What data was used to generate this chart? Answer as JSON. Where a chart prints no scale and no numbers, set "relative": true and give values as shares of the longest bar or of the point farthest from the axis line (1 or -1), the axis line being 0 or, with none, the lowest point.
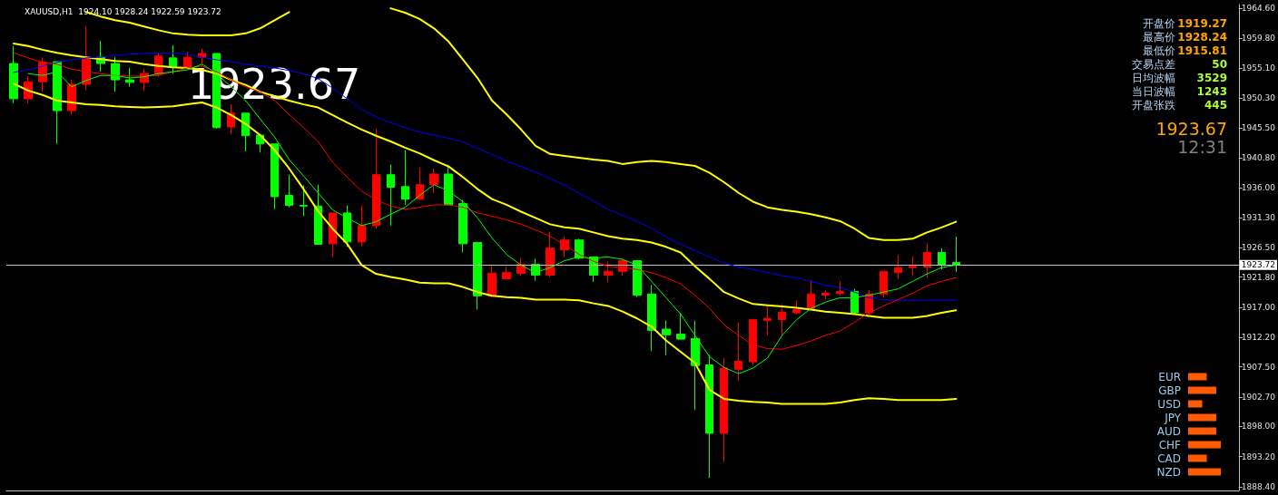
{
  "chart_data": [
    {
      "type": "candlestick",
      "title": "XAUUSD,H1  1924.10 1928.24 1922.59 1923.72",
      "categories": [
        null,
        null,
        null,
        null,
        null,
        null,
        null,
        null,
        null,
        null,
        null,
        null,
        null,
        null,
        null,
        null,
        null,
        null,
        null,
        null,
        null,
        null,
        null,
        null,
        null,
        null,
        null,
        null,
        null,
        null,
        null,
        null,
        null,
        null,
        null,
        null,
        null,
        null,
        null,
        null,
        null,
        null,
        null,
        null,
        null,
        null,
        null,
        null,
        null,
        null,
        null,
        null,
        null,
        null,
        null,
        null,
        null,
        null,
        null,
        null,
        null,
        null,
        null,
        null,
        null,
        null
      ],
      "ohlc": [
        [
          1955.8,
          1958.6,
          1949.5,
          1950.2
        ],
        [
          1950.2,
          1953.8,
          1949.5,
          1952.9
        ],
        [
          1952.9,
          1956.8,
          1951.3,
          1956.0
        ],
        [
          1956.1,
          1956.1,
          1943.0,
          1948.3
        ],
        [
          1948.3,
          1953.2,
          1947.7,
          1952.5
        ],
        [
          1952.5,
          1961.7,
          1951.6,
          1956.5
        ],
        [
          1956.8,
          1959.4,
          1954.5,
          1955.8
        ],
        [
          1955.8,
          1956.8,
          1951.3,
          1953.2
        ],
        [
          1953.2,
          1955.1,
          1952.1,
          1952.8
        ],
        [
          1952.8,
          1955.0,
          1951.5,
          1954.2
        ],
        [
          1954.1,
          1957.5,
          1953.7,
          1957.0
        ],
        [
          1956.7,
          1958.7,
          1954.2,
          1955.2
        ],
        [
          1955.2,
          1957.7,
          1955.0,
          1956.8
        ],
        [
          1956.8,
          1958.1,
          1955.4,
          1957.4
        ],
        [
          1957.4,
          1957.5,
          1945.4,
          1945.6
        ],
        [
          1945.7,
          1949.3,
          1944.6,
          1947.9
        ],
        [
          1947.9,
          1947.9,
          1941.8,
          1944.3
        ],
        [
          1944.4,
          1944.6,
          1941.6,
          1943.0
        ],
        [
          1943.0,
          1943.0,
          1932.6,
          1934.6
        ],
        [
          1934.8,
          1938.1,
          1932.9,
          1933.2
        ],
        [
          1933.2,
          1936.4,
          1931.5,
          1933.1
        ],
        [
          1933.1,
          1936.5,
          1926.9,
          1927.0
        ],
        [
          1927.1,
          1932.0,
          1925.0,
          1932.0
        ],
        [
          1932.0,
          1933.2,
          1926.6,
          1927.4
        ],
        [
          1927.4,
          1933.2,
          1926.7,
          1930.0
        ],
        [
          1930.0,
          1945.4,
          1929.5,
          1938.1
        ],
        [
          1938.1,
          1939.7,
          1930.0,
          1936.1
        ],
        [
          1936.2,
          1942.0,
          1933.3,
          1934.2
        ],
        [
          1934.2,
          1939.2,
          1934.1,
          1936.5
        ],
        [
          1936.5,
          1939.1,
          1935.2,
          1938.2
        ],
        [
          1938.2,
          1939.7,
          1933.3,
          1933.3
        ],
        [
          1933.5,
          1934.1,
          1925.7,
          1927.1
        ],
        [
          1927.3,
          1927.4,
          1916.6,
          1918.8
        ],
        [
          1918.8,
          1923.5,
          1918.6,
          1922.4
        ],
        [
          1921.5,
          1923.4,
          1921.5,
          1922.5
        ],
        [
          1922.4,
          1924.8,
          1922.0,
          1923.8
        ],
        [
          1923.8,
          1924.7,
          1921.2,
          1922.1
        ],
        [
          1922.1,
          1929.0,
          1921.8,
          1926.4
        ],
        [
          1926.1,
          1928.2,
          1925.0,
          1927.7
        ],
        [
          1927.7,
          1927.9,
          1924.6,
          1924.8
        ],
        [
          1925.0,
          1925.0,
          1921.0,
          1922.1
        ],
        [
          1922.1,
          1924.3,
          1921.0,
          1922.7
        ],
        [
          1922.7,
          1924.8,
          1922.0,
          1924.4
        ],
        [
          1924.4,
          1924.4,
          1918.6,
          1918.9
        ],
        [
          1919.1,
          1920.5,
          1910.0,
          1913.3
        ],
        [
          1913.5,
          1914.9,
          1909.3,
          1912.6
        ],
        [
          1912.7,
          1916.1,
          1911.9,
          1911.9
        ],
        [
          1912.0,
          1914.8,
          1900.6,
          1907.7
        ],
        [
          1907.8,
          1909.4,
          1889.8,
          1896.9
        ],
        [
          1896.9,
          1908.9,
          1892.4,
          1907.3
        ],
        [
          1907.1,
          1914.5,
          1905.3,
          1908.4
        ],
        [
          1908.3,
          1915.0,
          1907.8,
          1915.0
        ],
        [
          1914.9,
          1917.2,
          1912.5,
          1915.2
        ],
        [
          1915.0,
          1917.5,
          1912.5,
          1916.2
        ],
        [
          1916.1,
          1918.1,
          1915.8,
          1916.6
        ],
        [
          1916.8,
          1921.2,
          1916.5,
          1919.1
        ],
        [
          1918.9,
          1919.7,
          1918.2,
          1919.2
        ],
        [
          1919.2,
          1921.1,
          1918.9,
          1919.5
        ],
        [
          1919.5,
          1919.9,
          1915.9,
          1916.1
        ],
        [
          1916.1,
          1919.7,
          1915.8,
          1919.1
        ],
        [
          1919.1,
          1922.8,
          1918.5,
          1922.7
        ],
        [
          1922.5,
          1925.3,
          1921.5,
          1923.3
        ],
        [
          1923.3,
          1925.1,
          1922.0,
          1923.5
        ],
        [
          1923.4,
          1927.1,
          1921.7,
          1925.7
        ],
        [
          1925.7,
          1926.4,
          1923.0,
          1923.7
        ],
        [
          1924.1,
          1928.24,
          1922.59,
          1923.72
        ]
      ],
      "colors": [
        "#00ff00",
        "#ff0000",
        "#ff0000",
        "#00ff00",
        "#ff0000",
        "#ff0000",
        "#00ff00",
        "#00ff00",
        "#00ff00",
        "#ff0000",
        "#ff0000",
        "#00ff00",
        "#ff0000",
        "#ff0000",
        "#00ff00",
        "#ff0000",
        "#00ff00",
        "#00ff00",
        "#00ff00",
        "#00ff00",
        "#00ff00",
        "#00ff00",
        "#ff0000",
        "#00ff00",
        "#ff0000",
        "#ff0000",
        "#00ff00",
        "#00ff00",
        "#ff0000",
        "#ff0000",
        "#00ff00",
        "#00ff00",
        "#00ff00",
        "#ff0000",
        "#ff0000",
        "#ff0000",
        "#00ff00",
        "#ff0000",
        "#ff0000",
        "#00ff00",
        "#00ff00",
        "#ff0000",
        "#ff0000",
        "#00ff00",
        "#00ff00",
        "#00ff00",
        "#00ff00",
        "#00ff00",
        "#00ff00",
        "#ff0000",
        "#ff0000",
        "#ff0000",
        "#ff0000",
        "#ff0000",
        "#ff0000",
        "#ff0000",
        "#ff0000",
        "#ff0000",
        "#00ff00",
        "#ff0000",
        "#ff0000",
        "#ff0000",
        "#ff0000",
        "#ff0000",
        "#00ff00",
        "#00ff00"
      ],
      "series": [
        {
          "type": "line",
          "color": "#ffff00",
          "values": [
            null,
            null,
            null,
            null,
            null,
            1964.0,
            1963.3,
            1962.7,
            1962.3,
            1961.7,
            1961.1,
            1960.6,
            1960.4,
            1960.3,
            1960.3,
            1960.3,
            1960.6,
            1961.4,
            1962.7,
            1964.0,
            null,
            null,
            null,
            null,
            null,
            null,
            1964.6,
            1963.9,
            1962.9,
            1961.4,
            1959.3,
            1956.4,
            1953.5,
            1949.9,
            1947.7,
            1945.3,
            1942.7,
            1941.4,
            1941.1,
            1940.8,
            1940.5,
            1940.3,
            1939.8,
            1940.1,
            1940.3,
            1940.1,
            1939.8,
            1939.5,
            1938.4,
            1936.9,
            1935.2,
            1933.8,
            1932.9,
            1932.5,
            1932.2,
            1931.8,
            1931.3,
            1930.7,
            1929.5,
            1928.0,
            1927.7,
            1927.7,
            1927.9,
            1928.9,
            1929.7,
            1930.6
          ]
        },
        {
          "type": "line",
          "color": "#ffff00",
          "values": [
            1959.0,
            1958.6,
            1958.0,
            1957.5,
            1957.1,
            1956.8,
            1956.5,
            1956.2,
            1956.1,
            1955.7,
            1955.4,
            1955.2,
            1955.1,
            1954.8,
            1954.2,
            1953.2,
            1952.4,
            1951.3,
            1950.6,
            1949.9,
            1949.3,
            1948.8,
            1947.6,
            1946.4,
            1945.3,
            1944.3,
            1943.4,
            1942.4,
            1941.5,
            1940.4,
            1939.4,
            1937.7,
            1935.8,
            1934.2,
            1933.3,
            1932.2,
            1931.2,
            1930.2,
            1929.7,
            1929.5,
            1928.9,
            1928.3,
            1927.9,
            1927.7,
            1927.3,
            1926.6,
            1925.7,
            1923.5,
            1921.5,
            1919.4,
            1918.4,
            1917.5,
            1917.3,
            1917.1,
            1916.9,
            1916.6,
            1916.3,
            1916.1,
            1915.9,
            1915.6,
            1915.3,
            1915.3,
            1915.3,
            1915.6,
            1916.1,
            1916.5
          ]
        },
        {
          "type": "line",
          "color": "#ffff00",
          "values": [
            1952.6,
            1951.5,
            1950.8,
            1949.9,
            1949.6,
            1949.3,
            1949.2,
            1949.0,
            1948.9,
            1948.8,
            1948.9,
            1949.0,
            1949.3,
            1949.6,
            1948.8,
            1947.6,
            1946.2,
            1944.4,
            1942.0,
            1939.1,
            1935.8,
            1932.3,
            1929.5,
            1927.1,
            1923.7,
            1922.3,
            1921.8,
            1921.4,
            1920.9,
            1920.8,
            1920.8,
            1920.2,
            1919.4,
            1918.8,
            1918.6,
            1918.5,
            1918.2,
            1918.2,
            1918.2,
            1918.1,
            1917.6,
            1917.2,
            1916.3,
            1915.2,
            1913.9,
            1911.7,
            1909.9,
            1908.1,
            1903.8,
            1902.4,
            1902.1,
            1901.9,
            1901.8,
            1901.6,
            1901.6,
            1901.6,
            1901.6,
            1901.8,
            1902.2,
            1902.5,
            1902.4,
            1902.2,
            1902.2,
            1902.2,
            1902.2,
            1902.4
          ]
        },
        {
          "type": "line",
          "color": "#0000ff",
          "values": [
            1954.4,
            1954.8,
            1955.4,
            1956.0,
            1956.4,
            1956.7,
            1956.8,
            1957.1,
            1957.3,
            1957.4,
            1957.5,
            1957.5,
            1957.3,
            1956.8,
            1956.4,
            1956.1,
            1955.7,
            1955.4,
            1955.1,
            1954.7,
            1954.2,
            1953.4,
            1951.9,
            1950.2,
            1948.5,
            1947.3,
            1946.4,
            1945.6,
            1944.9,
            1944.4,
            1943.9,
            1943.3,
            1942.3,
            1941.3,
            1940.3,
            1939.4,
            1938.5,
            1937.5,
            1936.4,
            1935.2,
            1933.9,
            1932.6,
            1931.6,
            1930.7,
            1929.5,
            1928.2,
            1927.0,
            1926.0,
            1925.0,
            1924.0,
            1923.4,
            1923.0,
            1922.5,
            1922.0,
            1921.7,
            1921.1,
            1920.5,
            1920.1,
            1919.4,
            1918.5,
            1918.2,
            1918.1,
            1918.1,
            1918.1,
            1918.1,
            1918.1
          ]
        },
        {
          "type": "line",
          "color": "#ff0000",
          "values": [
            1957.5,
            1956.7,
            1956.0,
            1955.7,
            1954.9,
            1954.5,
            1954.2,
            1953.9,
            1953.8,
            1953.8,
            1953.9,
            1954.5,
            1955.1,
            1955.4,
            1954.5,
            1953.2,
            1952.1,
            1951.3,
            1949.9,
            1947.7,
            1945.6,
            1943.4,
            1940.1,
            1937.7,
            1935.5,
            1934.1,
            1933.1,
            1932.6,
            1932.9,
            1933.3,
            1933.3,
            1932.9,
            1932.0,
            1931.5,
            1930.9,
            1930.2,
            1929.3,
            1928.3,
            1926.9,
            1925.4,
            1924.3,
            1923.5,
            1923.3,
            1923.0,
            1922.5,
            1921.7,
            1920.7,
            1918.9,
            1916.8,
            1914.2,
            1912.5,
            1911.0,
            1910.4,
            1910.3,
            1910.9,
            1911.6,
            1912.5,
            1913.2,
            1914.6,
            1916.1,
            1917.2,
            1918.2,
            1919.2,
            1920.4,
            1921.1,
            1921.7
          ]
        },
        {
          "type": "line",
          "color": "#00ff00",
          "values": [
            null,
            1954.2,
            1953.9,
            1954.5,
            1952.1,
            1953.1,
            1953.9,
            1953.9,
            1953.5,
            1953.7,
            1954.2,
            1954.5,
            1954.8,
            1955.7,
            1954.2,
            1952.1,
            1949.9,
            1947.0,
            1944.1,
            1940.5,
            1937.9,
            1935.2,
            1932.5,
            1931.2,
            1930.0,
            1930.6,
            1931.8,
            1932.9,
            1934.8,
            1936.5,
            1935.5,
            1933.8,
            1931.2,
            1928.0,
            1925.4,
            1923.7,
            1922.5,
            1923.3,
            1924.4,
            1925.0,
            1924.8,
            1925.0,
            1924.6,
            1923.7,
            1921.1,
            1918.5,
            1915.9,
            1912.5,
            1909.1,
            1907.4,
            1906.4,
            1907.3,
            1908.9,
            1912.5,
            1915.0,
            1916.8,
            1917.8,
            1918.5,
            1918.5,
            1918.9,
            1919.4,
            1919.9,
            1921.1,
            1922.3,
            1923.3,
            1923.7
          ]
        }
      ],
      "ylim": [
        1887.8,
        1965.2
      ],
      "yticks": [
        {
          "value": 1964.6,
          "label": "1964.60"
        },
        {
          "value": 1959.8,
          "label": "1959.80"
        },
        {
          "value": 1955.1,
          "label": "1955.10"
        },
        {
          "value": 1950.3,
          "label": "1950.30"
        },
        {
          "value": 1945.5,
          "label": "1945.50"
        },
        {
          "value": 1940.8,
          "label": "1940.80"
        },
        {
          "value": 1936.0,
          "label": "1936.00"
        },
        {
          "value": 1931.3,
          "label": "1931.30"
        },
        {
          "value": 1926.5,
          "label": "1926.50"
        },
        {
          "value": 1921.8,
          "label": "1921.80"
        },
        {
          "value": 1917.0,
          "label": "1917.00"
        },
        {
          "value": 1912.2,
          "label": "1912.20"
        },
        {
          "value": 1907.5,
          "label": "1907.50"
        },
        {
          "value": 1902.7,
          "label": "1902.70"
        },
        {
          "value": 1898.0,
          "label": "1898.00"
        },
        {
          "value": 1893.2,
          "label": "1893.20"
        },
        {
          "value": 1888.4,
          "label": "1888.40"
        }
      ],
      "ref_lines": [
        {
          "axis": "y",
          "value": 1923.72,
          "label": "1923.72",
          "color": "#c0c0c0"
        }
      ],
      "annotations": [
        "1923.67",
        "开盘价",
        "1919.27",
        "最高价",
        "1928.24",
        "最低价",
        "1915.81",
        "交易点差",
        "50",
        "日均波幅",
        "3529",
        "当日波幅",
        "1243",
        "开盘张跌",
        "445",
        "1923.67",
        "12:31"
      ],
      "tick_labels": "y",
      "grid": false,
      "marker": "none",
      "line_style": "solid"
    },
    {
      "type": "bar",
      "orientation": "horizontal",
      "relative": true,
      "categories": [
        "EUR",
        "GBP",
        "USD",
        "JPY",
        "AUD",
        "CHF",
        "CAD",
        "NZD"
      ],
      "values": [
        0.57,
        0.86,
        0.43,
        0.86,
        0.86,
        1,
        0.57,
        1
      ],
      "color": "#ff5a00",
      "tick_labels": "y"
    }
  ]
}
